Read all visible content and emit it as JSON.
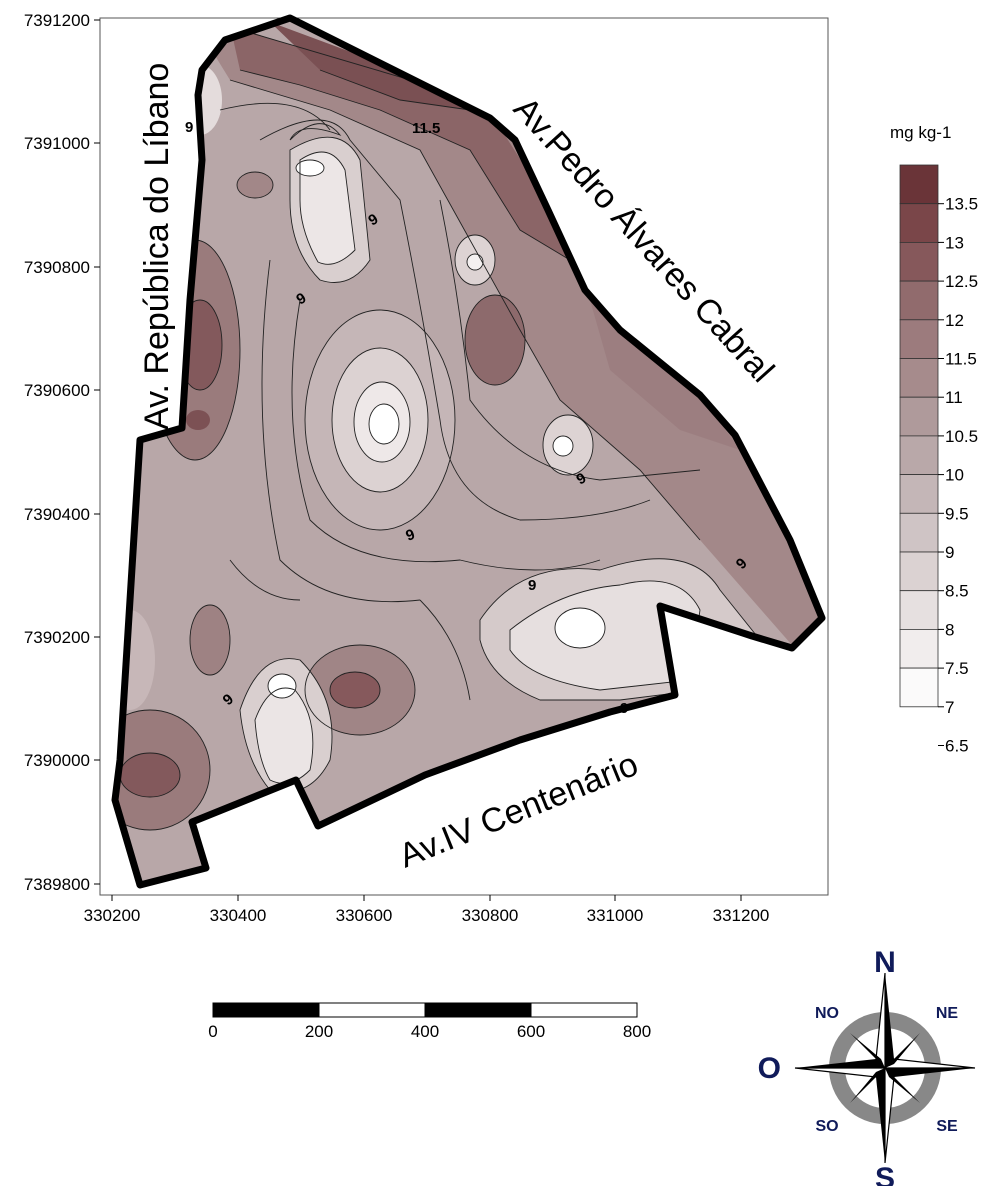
{
  "map": {
    "x_ticks": [
      "330200",
      "330400",
      "330600",
      "330800",
      "331000",
      "331200"
    ],
    "y_ticks": [
      "7391200",
      "7391000",
      "7390800",
      "7390600",
      "7390400",
      "7390200",
      "7390000",
      "7389800"
    ],
    "streets": {
      "left": "Av. República do Líbano",
      "top_right": "Av.Pedro Álvares Cabral",
      "bottom": "Av.IV Centenário"
    },
    "contour_labels": [
      "9",
      "11.5",
      "9",
      "9",
      "9",
      "9",
      "9",
      "9",
      "9",
      "9"
    ]
  },
  "legend": {
    "unit": "mg kg-1",
    "levels": [
      "13.5",
      "13",
      "12.5",
      "12",
      "11.5",
      "11",
      "10.5",
      "10",
      "9.5",
      "9",
      "8.5",
      "8",
      "7.5",
      "7",
      "6.5"
    ],
    "colors": [
      "#6a3438",
      "#7a4649",
      "#86585b",
      "#916b6d",
      "#9c7b7d",
      "#a68b8c",
      "#af9a9b",
      "#b9a8a9",
      "#c4b6b7",
      "#cfc4c5",
      "#dbd2d2",
      "#e6e0e0",
      "#f1eded",
      "#fbfafa"
    ]
  },
  "scale_bar": {
    "labels": [
      "0",
      "200",
      "400",
      "600",
      "800"
    ]
  },
  "compass": {
    "N": "N",
    "S": "S",
    "O": "O",
    "NO": "NO",
    "NE": "NE",
    "SO": "SO",
    "SE": "SE"
  }
}
